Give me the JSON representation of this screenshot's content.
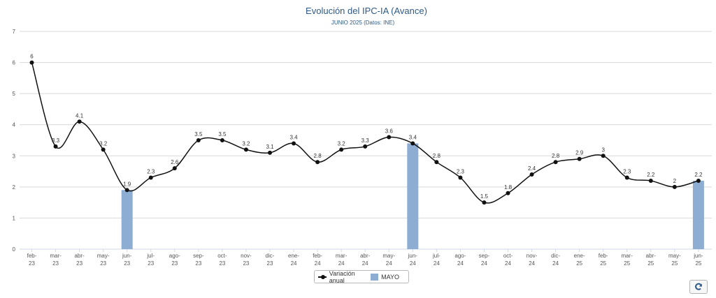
{
  "chart_data": {
    "type": "line",
    "title": "Evolución del IPC-IA (Avance)",
    "subtitle": "JUNIO 2025 (Datos: INE)",
    "categories": [
      "feb-23",
      "mar-23",
      "abr-23",
      "may-23",
      "jun-23",
      "jul-23",
      "ago-23",
      "sep-23",
      "oct-23",
      "nov-23",
      "dic-23",
      "ene-24",
      "feb-24",
      "mar-24",
      "abr-24",
      "may-24",
      "jun-24",
      "jul-24",
      "ago-24",
      "sep-24",
      "oct-24",
      "nov-24",
      "dic-24",
      "ene-25",
      "feb-25",
      "mar-25",
      "abr-25",
      "may-25",
      "jun-25"
    ],
    "series": [
      {
        "name": "Variación anual",
        "type": "line",
        "color": "#111111",
        "values": [
          6,
          3.3,
          4.1,
          3.2,
          1.9,
          2.3,
          2.6,
          3.5,
          3.5,
          3.2,
          3.1,
          3.4,
          2.8,
          3.2,
          3.3,
          3.6,
          3.4,
          2.8,
          2.3,
          1.5,
          1.8,
          2.4,
          2.8,
          2.9,
          3,
          2.3,
          2.2,
          2,
          2.2
        ]
      },
      {
        "name": "MAYO",
        "type": "bar",
        "color": "#8eadd3",
        "values": [
          null,
          null,
          null,
          null,
          1.9,
          null,
          null,
          null,
          null,
          null,
          null,
          null,
          null,
          null,
          null,
          null,
          3.4,
          null,
          null,
          null,
          null,
          null,
          null,
          null,
          null,
          null,
          null,
          null,
          2.2
        ]
      }
    ],
    "data_labels": [
      "6",
      "3.3",
      "4.1",
      "3.2",
      "1.9",
      "2.3",
      "2.6",
      "3.5",
      "3.5",
      "3.2",
      "3.1",
      "3.4",
      "2.8",
      "3.2",
      "3.3",
      "3.6",
      "3.4",
      "2.8",
      "2.3",
      "1.5",
      "1.8",
      "2.4",
      "2.8",
      "2.9",
      "3",
      "2.3",
      "2.2",
      "2",
      "2.2"
    ],
    "ylim": [
      0,
      7
    ],
    "yticks": [
      "0",
      "1",
      "2",
      "3",
      "4",
      "5",
      "6",
      "7"
    ],
    "grid": "horizontal",
    "legend_position": "bottom-center"
  },
  "toolbar": {
    "refresh_icon": "refresh-icon"
  }
}
